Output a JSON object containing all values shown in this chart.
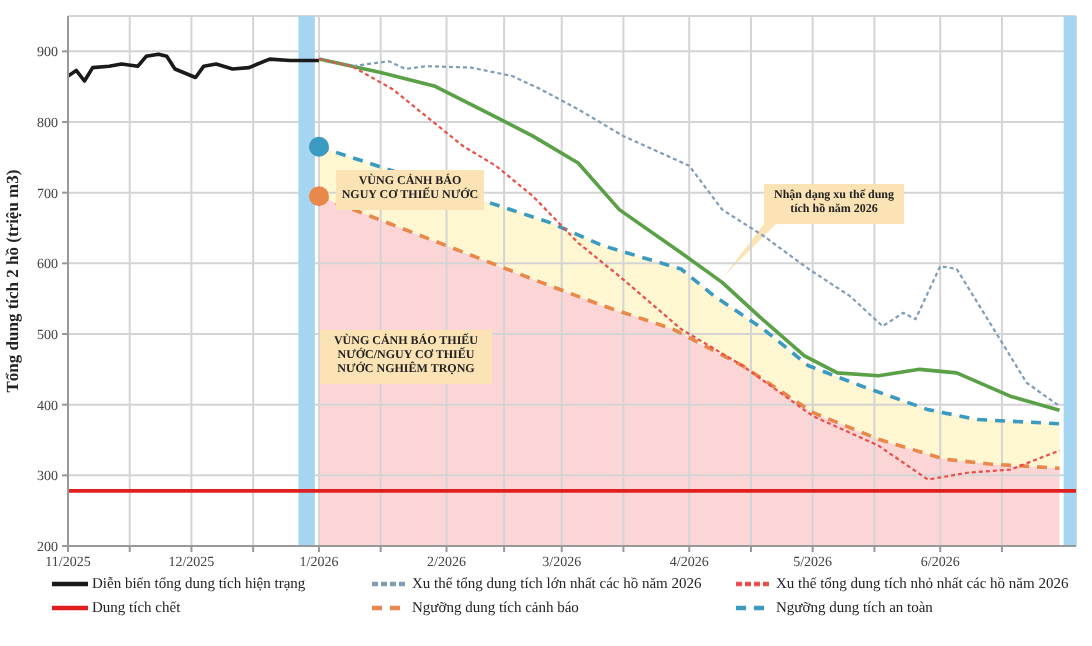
{
  "chart_data": {
    "type": "line",
    "ylabel": "Tổng dung tích 2 hồ (triệu m3)",
    "xlim": [
      "2025-11-01",
      "2026-07-04"
    ],
    "xticks": [
      {
        "value": "2025-11-01",
        "label": "11/2025"
      },
      {
        "value": "2025-11-16",
        "label": null
      },
      {
        "value": "2025-12-01",
        "label": "12/2025"
      },
      {
        "value": "2025-12-16",
        "label": null
      },
      {
        "value": "2026-01-01",
        "label": "1/2026"
      },
      {
        "value": "2026-01-16",
        "label": null
      },
      {
        "value": "2026-02-01",
        "label": "2/2026"
      },
      {
        "value": "2026-02-15",
        "label": null
      },
      {
        "value": "2026-03-01",
        "label": "3/2026"
      },
      {
        "value": "2026-03-16",
        "label": null
      },
      {
        "value": "2026-04-01",
        "label": "4/2026"
      },
      {
        "value": "2026-04-16",
        "label": null
      },
      {
        "value": "2026-05-01",
        "label": "5/2026"
      },
      {
        "value": "2026-05-16",
        "label": null
      },
      {
        "value": "2026-06-01",
        "label": "6/2026"
      },
      {
        "value": "2026-06-16",
        "label": null
      }
    ],
    "ylim": [
      200,
      950
    ],
    "yticks": [
      200,
      300,
      400,
      500,
      600,
      700,
      800,
      900
    ],
    "grid": true,
    "legend": "bottom",
    "series": [
      {
        "name": "Diễn biến tổng dung tích hiện trạng",
        "color": "#1a1a1a",
        "line_style": "solid",
        "x": [
          "2025-11-01",
          "2025-11-03",
          "2025-11-05",
          "2025-11-07",
          "2025-11-11",
          "2025-11-14",
          "2025-11-18",
          "2025-11-20",
          "2025-11-23",
          "2025-11-25",
          "2025-11-27",
          "2025-12-02",
          "2025-12-04",
          "2025-12-07",
          "2025-12-11",
          "2025-12-15",
          "2025-12-20",
          "2025-12-25",
          "2026-01-01"
        ],
        "values": [
          865,
          873,
          858,
          877,
          879,
          882,
          879,
          893,
          896,
          893,
          875,
          863,
          879,
          882,
          875,
          877,
          889,
          887,
          887
        ]
      },
      {
        "name": "Xu thế tổng dung tích lớn nhất các hồ năm 2026",
        "color": "#7f9cb8",
        "line_style": "dotted",
        "x": [
          "2026-01-01",
          "2026-01-09",
          "2026-01-18",
          "2026-01-22",
          "2026-01-27",
          "2026-02-07",
          "2026-02-17",
          "2026-02-24",
          "2026-03-05",
          "2026-03-16",
          "2026-04-01",
          "2026-04-09",
          "2026-04-19",
          "2026-04-30",
          "2026-05-10",
          "2026-05-18",
          "2026-05-23",
          "2026-05-26",
          "2026-06-01",
          "2026-06-05",
          "2026-06-14",
          "2026-06-22",
          "2026-06-30"
        ],
        "values": [
          889,
          879,
          886,
          875,
          879,
          877,
          865,
          846,
          818,
          780,
          738,
          676,
          639,
          592,
          554,
          511,
          530,
          521,
          596,
          592,
          507,
          431,
          398
        ]
      },
      {
        "name": "Xu thế tổng dung tích nhỏ nhất các hồ năm 2026",
        "color": "#e8504a",
        "line_style": "dotted",
        "x": [
          "2026-01-01",
          "2026-01-09",
          "2026-01-19",
          "2026-01-26",
          "2026-02-05",
          "2026-02-13",
          "2026-02-22",
          "2026-03-01",
          "2026-03-05",
          "2026-03-16",
          "2026-03-30",
          "2026-04-14",
          "2026-05-01",
          "2026-05-17",
          "2026-05-29",
          "2026-06-08",
          "2026-06-18",
          "2026-06-30"
        ],
        "values": [
          889,
          879,
          846,
          813,
          766,
          738,
          695,
          653,
          629,
          577,
          507,
          455,
          384,
          342,
          294,
          304,
          308,
          335
        ]
      },
      {
        "name": "Dung tích chết",
        "color": "#e02020",
        "line_style": "solid",
        "x": [
          "2025-11-01",
          "2026-07-04"
        ],
        "values": [
          278,
          278
        ]
      },
      {
        "name": "Ngưỡng dung tích cảnh báo",
        "color": "#e8884a",
        "line_style": "dashed",
        "x": [
          "2026-01-01",
          "2026-02-01",
          "2026-02-24",
          "2026-03-11",
          "2026-03-28",
          "2026-04-14",
          "2026-05-01",
          "2026-05-17",
          "2026-06-02",
          "2026-06-13",
          "2026-06-30"
        ],
        "values": [
          695,
          625,
          573,
          540,
          507,
          455,
          389,
          351,
          323,
          316,
          310
        ]
      },
      {
        "name": "Ngưỡng dung tích an toàn",
        "color": "#3a9ac0",
        "line_style": "dashed",
        "x": [
          "2026-01-01",
          "2026-02-26",
          "2026-03-11",
          "2026-03-30",
          "2026-04-07",
          "2026-04-19",
          "2026-04-30",
          "2026-05-13",
          "2026-05-29",
          "2026-06-10",
          "2026-06-30"
        ],
        "values": [
          765,
          658,
          625,
          592,
          554,
          507,
          455,
          426,
          393,
          379,
          373
        ]
      },
      {
        "color": "#5aa046",
        "line_style": "solid",
        "x": [
          "2026-01-01",
          "2026-01-16",
          "2026-01-29",
          "2026-02-11",
          "2026-02-22",
          "2026-03-05",
          "2026-03-15",
          "2026-03-30",
          "2026-04-09",
          "2026-04-18",
          "2026-04-29",
          "2026-05-07",
          "2026-05-17",
          "2026-05-27",
          "2026-06-05",
          "2026-06-18",
          "2026-06-30"
        ],
        "values": [
          889,
          870,
          851,
          813,
          780,
          742,
          676,
          615,
          573,
          525,
          469,
          445,
          441,
          450,
          445,
          412,
          392
        ]
      }
    ],
    "bands": [
      {
        "axis": "x",
        "from": "2025-12-27",
        "to": "2025-12-31",
        "color": "#a6d5f2"
      },
      {
        "axis": "x",
        "from": "2026-07-01",
        "to": "2026-07-04",
        "color": "#a6d5f2"
      }
    ],
    "annotations": [
      "VÙNG CẢNH BÁO NGUY CƠ THIẾU NƯỚC",
      "VÙNG CẢNH BÁO THIẾU NƯỚC/NGUY CƠ THIẾU NƯỚC NGHIÊM TRỌNG",
      "Nhận dạng xu thế dung tích hồ năm 2026"
    ]
  }
}
